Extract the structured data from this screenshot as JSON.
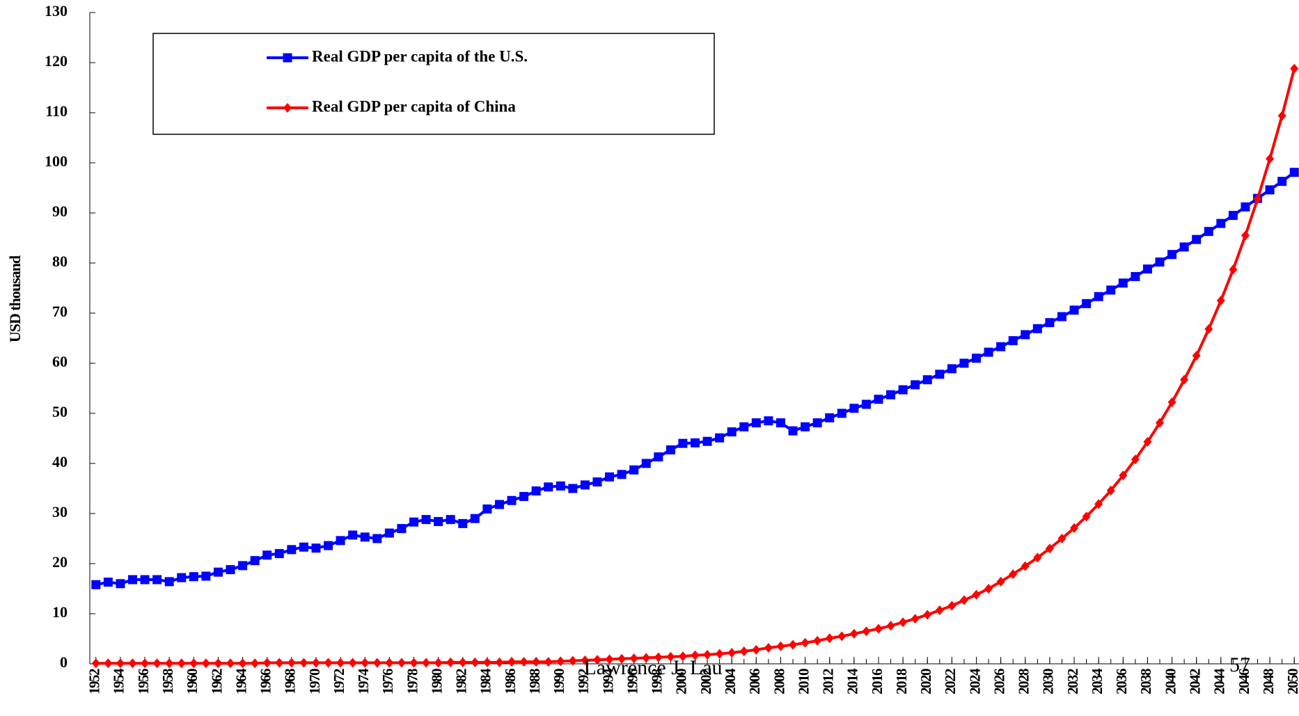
{
  "chart_data": {
    "type": "line",
    "ylabel": "USD thousand",
    "footer": "Lawrence J. Lau",
    "page_number": "57",
    "x": [
      1952,
      1953,
      1954,
      1955,
      1956,
      1957,
      1958,
      1959,
      1960,
      1961,
      1962,
      1963,
      1964,
      1965,
      1966,
      1967,
      1968,
      1969,
      1970,
      1971,
      1972,
      1973,
      1974,
      1975,
      1976,
      1977,
      1978,
      1979,
      1980,
      1981,
      1982,
      1983,
      1984,
      1985,
      1986,
      1987,
      1988,
      1989,
      1990,
      1991,
      1992,
      1993,
      1994,
      1995,
      1996,
      1997,
      1998,
      1999,
      2000,
      2001,
      2002,
      2003,
      2004,
      2005,
      2006,
      2007,
      2008,
      2009,
      2010,
      2011,
      2012,
      2013,
      2014,
      2015,
      2016,
      2017,
      2018,
      2019,
      2020,
      2021,
      2022,
      2023,
      2024,
      2025,
      2026,
      2027,
      2028,
      2029,
      2030,
      2031,
      2032,
      2033,
      2034,
      2035,
      2036,
      2037,
      2038,
      2039,
      2040,
      2041,
      2042,
      2043,
      2044,
      2045,
      2046,
      2047,
      2048,
      2049,
      2050
    ],
    "series": [
      {
        "name": "Real GDP per capita of the U.S.",
        "color": "#0000ff",
        "marker": "square",
        "values": [
          15.8,
          16.3,
          16.0,
          16.8,
          16.8,
          16.8,
          16.4,
          17.2,
          17.4,
          17.5,
          18.3,
          18.8,
          19.6,
          20.6,
          21.7,
          22.0,
          22.8,
          23.3,
          23.1,
          23.6,
          24.6,
          25.7,
          25.3,
          25.0,
          26.1,
          27.0,
          28.3,
          28.8,
          28.4,
          28.8,
          28.0,
          29.0,
          30.9,
          31.8,
          32.6,
          33.4,
          34.5,
          35.3,
          35.5,
          35.0,
          35.7,
          36.3,
          37.3,
          37.8,
          38.7,
          40.0,
          41.3,
          42.7,
          44.0,
          44.1,
          44.4,
          45.1,
          46.3,
          47.3,
          48.1,
          48.5,
          48.1,
          46.5,
          47.3,
          48.1,
          49.1,
          50.0,
          51.0,
          51.8,
          52.8,
          53.7,
          54.7,
          55.7,
          56.7,
          57.8,
          58.9,
          60.0,
          61.0,
          62.2,
          63.3,
          64.5,
          65.7,
          66.9,
          68.1,
          69.3,
          70.6,
          71.9,
          73.3,
          74.6,
          76.0,
          77.3,
          78.8,
          80.2,
          81.7,
          83.2,
          84.7,
          86.3,
          87.9,
          89.5,
          91.2,
          92.9,
          94.6,
          96.3,
          98.1
        ]
      },
      {
        "name": "Real GDP per capita of China",
        "color": "#ff0000",
        "marker": "diamond",
        "values": [
          0.1,
          0.1,
          0.1,
          0.1,
          0.1,
          0.1,
          0.1,
          0.1,
          0.1,
          0.1,
          0.1,
          0.1,
          0.1,
          0.1,
          0.2,
          0.2,
          0.2,
          0.2,
          0.2,
          0.2,
          0.2,
          0.2,
          0.2,
          0.2,
          0.2,
          0.2,
          0.2,
          0.2,
          0.2,
          0.3,
          0.3,
          0.3,
          0.3,
          0.3,
          0.4,
          0.4,
          0.4,
          0.4,
          0.5,
          0.6,
          0.7,
          0.8,
          0.9,
          1.0,
          1.1,
          1.2,
          1.3,
          1.4,
          1.5,
          1.7,
          1.8,
          2.0,
          2.2,
          2.5,
          2.8,
          3.2,
          3.5,
          3.8,
          4.2,
          4.6,
          5.1,
          5.5,
          6.0,
          6.5,
          7.0,
          7.6,
          8.3,
          9.0,
          9.8,
          10.7,
          11.6,
          12.7,
          13.8,
          15.0,
          16.4,
          17.9,
          19.5,
          21.2,
          23.0,
          25.0,
          27.1,
          29.4,
          31.9,
          34.6,
          37.6,
          40.8,
          44.3,
          48.1,
          52.2,
          56.7,
          61.5,
          66.8,
          72.5,
          78.7,
          85.5,
          92.8,
          100.8,
          109.4,
          118.8
        ]
      }
    ],
    "xlim": [
      1951.5,
      2050.5
    ],
    "xticks": [
      1952,
      1954,
      1956,
      1958,
      1960,
      1962,
      1964,
      1966,
      1968,
      1970,
      1972,
      1974,
      1976,
      1978,
      1980,
      1982,
      1984,
      1986,
      1988,
      1990,
      1992,
      1994,
      1996,
      1998,
      2000,
      2002,
      2004,
      2006,
      2008,
      2010,
      2012,
      2014,
      2016,
      2018,
      2020,
      2022,
      2024,
      2026,
      2028,
      2030,
      2032,
      2034,
      2036,
      2038,
      2040,
      2042,
      2044,
      2046,
      2048,
      2050
    ],
    "ylim": [
      0,
      130
    ],
    "yticks": [
      0,
      10,
      20,
      30,
      40,
      50,
      60,
      70,
      80,
      90,
      100,
      110,
      120,
      130
    ],
    "grid": false,
    "legend": "upper left"
  }
}
